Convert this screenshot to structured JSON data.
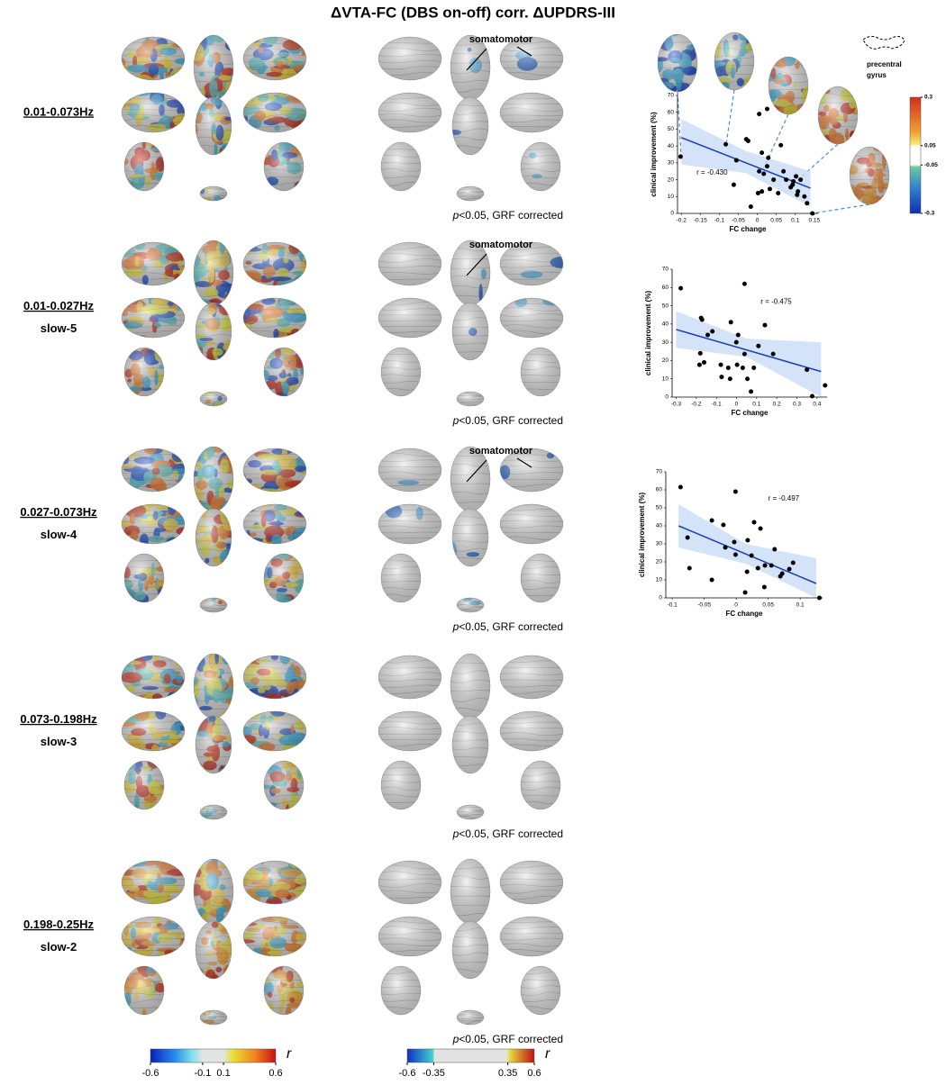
{
  "title": "ΔVTA-FC (DBS on-off) corr. ΔUPDRS-III",
  "rows": [
    {
      "labels": [
        "0.01-0.073Hz"
      ],
      "annotation": "somatomotor"
    },
    {
      "labels": [
        "0.01-0.027Hz",
        "slow-5"
      ],
      "annotation": "somatomotor"
    },
    {
      "labels": [
        "0.027-0.073Hz",
        "slow-4"
      ],
      "annotation": "somatomotor"
    },
    {
      "labels": [
        "0.073-0.198Hz",
        "slow-3"
      ]
    },
    {
      "labels": [
        "0.198-0.25Hz",
        "slow-2"
      ]
    }
  ],
  "note": {
    "p": "p",
    "text": "<0.05, GRF corrected"
  },
  "colorbars": [
    {
      "lim": [
        -0.6,
        0.6
      ],
      "ticks": [
        -0.6,
        -0.1,
        0.1,
        0.6
      ],
      "symbol": "r"
    },
    {
      "lim": [
        -0.6,
        0.6
      ],
      "ticks": [
        -0.6,
        -0.35,
        0.35,
        0.6
      ],
      "symbol": "r"
    },
    {
      "lim": [
        -0.3,
        0.3
      ],
      "ticks": [
        0.3,
        0.05,
        -0.05,
        -0.3
      ]
    }
  ],
  "inset_label": [
    "precentral",
    "gyrus"
  ],
  "chart_data": [
    {
      "type": "scatter",
      "x_label": "FC change",
      "y_label": "clinical improvement (%)",
      "annotation": "r = -0.430",
      "color": "#000000",
      "fit_color": "#1a3fb5",
      "ci_color": "#c9dcf5",
      "xlim": [
        -0.21,
        0.16
      ],
      "xticks": [
        -0.2,
        -0.15,
        -0.1,
        -0.05,
        0,
        0.05,
        0.1,
        0.15
      ],
      "ylim": [
        0,
        70
      ],
      "yticks": [
        0,
        10,
        20,
        30,
        40,
        50,
        60,
        70
      ],
      "x": [
        -0.202,
        -0.083,
        -0.055,
        -0.062,
        -0.029,
        -0.024,
        0.005,
        0.026,
        0.012,
        0.005,
        0.017,
        0.026,
        0.029,
        0.002,
        0.012,
        -0.017,
        0.033,
        0.043,
        0.055,
        0.062,
        0.069,
        0.076,
        0.088,
        0.093,
        0.095,
        0.102,
        0.107,
        0.114,
        0.124,
        0.105,
        0.131,
        0.145
      ],
      "values": [
        33.7,
        41,
        31.5,
        17,
        44,
        43,
        59,
        62,
        36,
        25,
        23.5,
        28,
        33,
        12,
        13,
        4,
        14.5,
        20,
        12,
        40.5,
        25,
        20,
        15.5,
        17,
        19,
        22,
        13,
        20,
        10,
        11,
        6,
        0
      ],
      "fit": {
        "x": [
          -0.2,
          0.14
        ],
        "y": [
          45,
          15
        ]
      },
      "ci": {
        "x": [
          -0.2,
          -0.03,
          0.14
        ],
        "upper": [
          56,
          37,
          25
        ],
        "lower": [
          29,
          24,
          4
        ]
      }
    },
    {
      "type": "scatter",
      "x_label": "FC change",
      "y_label": "clinical improvement (%)",
      "annotation": "r = -0.475",
      "color": "#000000",
      "fit_color": "#1a3fb5",
      "ci_color": "#c9dcf5",
      "xlim": [
        -0.32,
        0.45
      ],
      "xticks": [
        -0.3,
        -0.2,
        -0.1,
        0,
        0.1,
        0.2,
        0.3,
        0.4
      ],
      "ylim": [
        0,
        70
      ],
      "yticks": [
        0,
        10,
        20,
        30,
        40,
        50,
        60,
        70
      ],
      "x": [
        -0.277,
        -0.176,
        -0.171,
        -0.143,
        -0.12,
        -0.18,
        -0.161,
        -0.184,
        -0.078,
        -0.074,
        -0.041,
        -0.032,
        -0.028,
        -0.001,
        0.008,
        0.003,
        0.031,
        0.04,
        0.04,
        0.054,
        0.072,
        0.086,
        0.109,
        0.141,
        0.182,
        0.35,
        0.376,
        0.44
      ],
      "values": [
        59.6,
        43.3,
        42.4,
        34,
        36,
        24,
        19,
        17.7,
        17.7,
        11,
        16,
        10,
        41,
        30,
        34,
        17.7,
        16,
        62,
        23.6,
        10,
        3,
        16,
        28,
        39.4,
        23.6,
        15,
        0.5,
        6.4
      ],
      "fit": {
        "x": [
          -0.3,
          0.42
        ],
        "y": [
          37,
          14
        ]
      },
      "ci": {
        "x": [
          -0.3,
          0.05,
          0.42
        ],
        "upper": [
          47,
          32,
          30
        ],
        "lower": [
          27,
          22,
          0
        ]
      }
    },
    {
      "type": "scatter",
      "x_label": "FC change",
      "y_label": "clinical improvement (%)",
      "annotation": "r = -0.497",
      "color": "#000000",
      "fit_color": "#1a3fb5",
      "ci_color": "#c9dcf5",
      "xlim": [
        -0.11,
        0.135
      ],
      "xticks": [
        -0.1,
        -0.05,
        0,
        0.05,
        0.1
      ],
      "ylim": [
        0,
        70
      ],
      "yticks": [
        0,
        10,
        20,
        30,
        40,
        50,
        60,
        70
      ],
      "x": [
        -0.087,
        -0.076,
        -0.073,
        -0.038,
        -0.038,
        -0.02,
        -0.017,
        -0.001,
        -0.003,
        -0.001,
        0.014,
        0.017,
        0.018,
        0.024,
        0.028,
        0.034,
        0.038,
        0.044,
        0.045,
        0.055,
        0.06,
        0.069,
        0.072,
        0.083,
        0.089,
        0.13
      ],
      "values": [
        61.5,
        33.5,
        16.5,
        43,
        10,
        40.5,
        28,
        59,
        31,
        24,
        3,
        14.5,
        32,
        23.5,
        42,
        16.5,
        38.5,
        6,
        18,
        18,
        27,
        12,
        13.5,
        16,
        19.5,
        0
      ],
      "fit": {
        "x": [
          -0.09,
          0.125
        ],
        "y": [
          40,
          8
        ]
      },
      "ci": {
        "x": [
          -0.09,
          0.015,
          0.125
        ],
        "upper": [
          52,
          30,
          22
        ],
        "lower": [
          28,
          19,
          0
        ]
      }
    }
  ]
}
